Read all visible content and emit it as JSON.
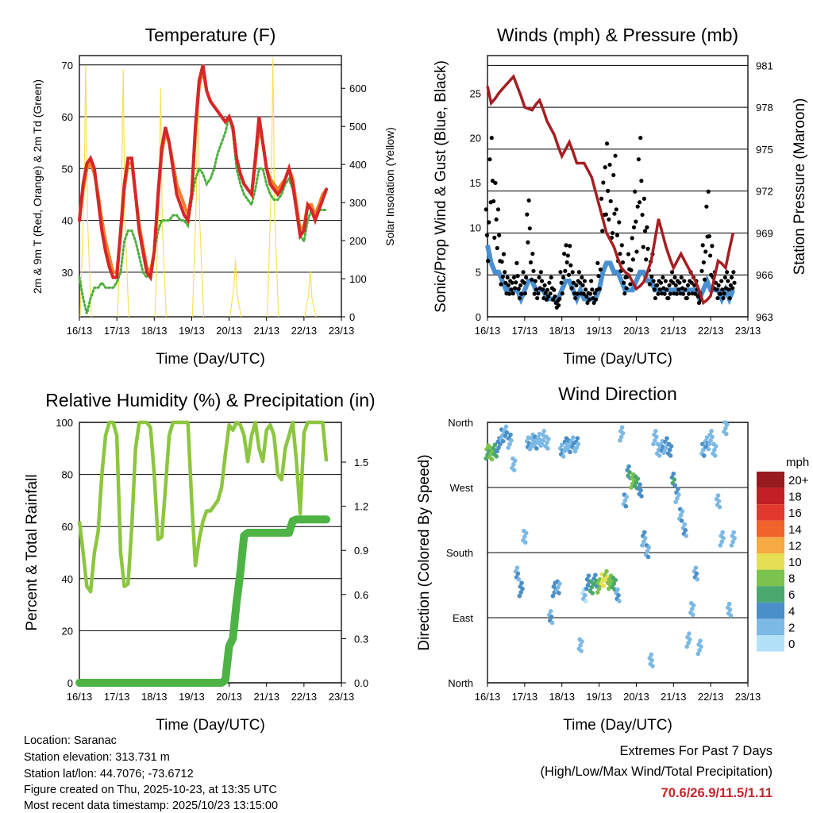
{
  "x_ticks": [
    "16/13",
    "17/13",
    "18/13",
    "19/13",
    "20/13",
    "21/13",
    "22/13",
    "23/13"
  ],
  "x_label": "Time (Day/UTC)",
  "info": {
    "location": "Location: Saranac",
    "elevation": "Station elevation: 313.731 m",
    "latlon": "Station lat/lon: 44.7076; -73.6712",
    "created": "Figure created on Thu, 2025-10-23, at 13:35 UTC",
    "recent": "Most recent data timestamp: 2025/10/23 13:15:00"
  },
  "extremes": {
    "title": "Extremes For Past 7 Days",
    "subtitle": "(High/Low/Max Wind/Total Precipitation)",
    "values": "70.6/26.9/11.5/1.11"
  },
  "chart_data": [
    {
      "type": "line",
      "title": "Temperature (F)",
      "ylabel": "2m & 9m T (Red, Orange) & 2m Td (Green)",
      "y2label": "Solar Insolation (Yellow)",
      "ylim": [
        21.4,
        71.8
      ],
      "y2lim": [
        0,
        686
      ],
      "yticks": [
        30,
        40,
        50,
        60,
        70
      ],
      "y2ticks": [
        0,
        100,
        200,
        300,
        400,
        500,
        600
      ],
      "x_step_days": 0.1,
      "series": [
        {
          "name": "2m T",
          "color": "#d62728",
          "values": [
            40,
            47,
            51,
            52,
            50,
            44,
            38,
            34,
            31,
            29,
            29,
            38,
            47,
            52,
            52,
            45,
            38,
            34,
            30,
            29,
            34,
            45,
            54,
            58,
            55,
            50,
            45,
            43,
            41,
            40,
            45,
            58,
            67,
            70,
            65,
            63,
            62,
            61,
            60,
            59,
            60,
            58,
            52,
            49,
            47,
            46,
            45,
            52,
            60,
            55,
            50,
            47,
            46,
            45,
            46,
            48,
            50,
            47,
            42,
            37,
            38,
            43,
            42,
            40,
            42,
            44,
            46
          ]
        },
        {
          "name": "9m T",
          "color": "#f07f2a",
          "values": [
            40,
            46,
            50,
            51,
            49,
            45,
            40,
            36,
            33,
            30,
            30,
            37,
            46,
            51,
            51,
            45,
            39,
            35,
            31,
            30,
            34,
            44,
            53,
            57,
            55,
            51,
            47,
            45,
            43,
            41,
            45,
            57,
            66,
            69,
            65,
            63,
            62,
            61,
            60,
            59,
            60,
            58,
            52,
            49,
            47,
            46,
            45,
            51,
            58,
            55,
            50,
            48,
            47,
            46,
            47,
            48,
            50,
            48,
            43,
            38,
            39,
            43,
            43,
            41,
            43,
            45,
            46
          ]
        },
        {
          "name": "2m Td",
          "color": "#4caf3f",
          "values": [
            29,
            25,
            22,
            25,
            27,
            27,
            28,
            27,
            27,
            27,
            28,
            30,
            36,
            38,
            38,
            36,
            33,
            30,
            29,
            30,
            34,
            38,
            40,
            40,
            40,
            41,
            41,
            40,
            40,
            39,
            44,
            48,
            50,
            49,
            47,
            48,
            50,
            53,
            55,
            57,
            60,
            57,
            50,
            47,
            45,
            44,
            43,
            46,
            50,
            50,
            47,
            45,
            44,
            44,
            45,
            47,
            48,
            46,
            42,
            37,
            36,
            40,
            42,
            41,
            42,
            42,
            42
          ]
        }
      ],
      "solar": {
        "name": "Solar Insolation",
        "color": "#f7e15a",
        "peak_day_offset": 0.17,
        "daily_peaks": [
          660,
          650,
          600,
          630,
          150,
          680,
          120
        ]
      }
    },
    {
      "type": "scatter+line",
      "title": "Winds (mph) & Pressure (mb)",
      "ylabel": "Sonic/Prop Wind & Gust (Blue, Black)",
      "y2label": "Station Pressure (Maroon)",
      "ylim": [
        0,
        29.2
      ],
      "y2lim": [
        963,
        981.7
      ],
      "yticks": [
        0,
        5,
        10,
        15,
        20,
        25
      ],
      "y2ticks": [
        963,
        966,
        969,
        972,
        975,
        978,
        981
      ],
      "x_step_days": 0.1,
      "pressure": {
        "color": "#a51e22",
        "values": [
          979.5,
          978.3,
          978.6,
          979,
          979.3,
          979.6,
          979.9,
          980.2,
          979.5,
          978.8,
          978,
          977.9,
          977.8,
          978.2,
          978.5,
          977.8,
          977,
          976.5,
          976,
          975.2,
          974.5,
          975,
          975.5,
          974.8,
          974,
          974,
          974,
          973.5,
          973,
          972,
          971,
          970,
          969,
          968.5,
          968,
          967.2,
          966.5,
          966.2,
          966,
          965.5,
          965,
          965.2,
          965.5,
          966.2,
          967,
          968.5,
          970,
          969,
          968,
          967.2,
          966.5,
          967,
          967.5,
          967,
          966.5,
          966,
          965.5,
          964.8,
          964,
          964.2,
          964.5,
          965.8,
          967,
          966.8,
          966.5,
          967.8,
          969
        ]
      },
      "gust": {
        "color": "#000000",
        "values": [
          12,
          20,
          17,
          12,
          7,
          5,
          4,
          5,
          6,
          4,
          5,
          13,
          8,
          4,
          5,
          4,
          3,
          5,
          3,
          2,
          5,
          8,
          9,
          5,
          4,
          5,
          4,
          3,
          4,
          3,
          6,
          15,
          22,
          17,
          18,
          12,
          8,
          5,
          7,
          10,
          14,
          20,
          15,
          10,
          7,
          4,
          4,
          5,
          4,
          4,
          5,
          4,
          5,
          4,
          4,
          5,
          4,
          3,
          8,
          14,
          9,
          5,
          4,
          4,
          5,
          4,
          5
        ]
      },
      "wind": {
        "color": "#4a90d0",
        "values": [
          8,
          6,
          5,
          5,
          4,
          3,
          3,
          3,
          3,
          2,
          3,
          4,
          4,
          3,
          3,
          3,
          2,
          2,
          2,
          2,
          3,
          4,
          4,
          3,
          2,
          3,
          2,
          2,
          2,
          2,
          3,
          5,
          6,
          6,
          5,
          5,
          4,
          3,
          3,
          3,
          4,
          5,
          5,
          4,
          4,
          3,
          3,
          3,
          3,
          3,
          3,
          3,
          3,
          3,
          3,
          3,
          3,
          2,
          3,
          4,
          3,
          3,
          3,
          2,
          3,
          2,
          3
        ]
      }
    },
    {
      "type": "line",
      "title": "Relative Humidity (%) & Precipitation (in)",
      "ylabel": "Percent & Total Rainfall",
      "ylim": [
        0,
        100
      ],
      "y2lim": [
        0,
        1.77
      ],
      "yticks": [
        0,
        20,
        40,
        60,
        80,
        100
      ],
      "y2ticks": [
        "0.0",
        "0.3",
        "0.6",
        "0.9",
        "1.2",
        "1.5"
      ],
      "x_step_days": 0.1,
      "rh": {
        "color": "#8cc63f",
        "values": [
          62,
          50,
          37,
          35,
          50,
          58,
          80,
          95,
          100,
          100,
          95,
          50,
          37,
          38,
          60,
          90,
          100,
          100,
          100,
          98,
          80,
          55,
          56,
          75,
          95,
          100,
          100,
          100,
          100,
          100,
          70,
          45,
          55,
          62,
          66,
          66,
          68,
          70,
          75,
          88,
          99,
          97,
          100,
          99,
          95,
          85,
          95,
          100,
          90,
          85,
          97,
          99,
          95,
          80,
          78,
          90,
          95,
          100,
          85,
          65,
          96,
          100,
          100,
          100,
          100,
          100,
          85
        ]
      },
      "precip": {
        "color": "#4cb344",
        "values": [
          0,
          0,
          0,
          0,
          0,
          0,
          0,
          0,
          0,
          0,
          0,
          0,
          0,
          0,
          0,
          0,
          0,
          0,
          0,
          0,
          0,
          0,
          0,
          0,
          0,
          0,
          0,
          0,
          0,
          0,
          0,
          0,
          0,
          0,
          0,
          0,
          0,
          0,
          0,
          0.02,
          0.25,
          0.3,
          0.55,
          0.75,
          1.0,
          1.02,
          1.02,
          1.02,
          1.02,
          1.02,
          1.02,
          1.02,
          1.02,
          1.02,
          1.02,
          1.02,
          1.02,
          1.1,
          1.11,
          1.11,
          1.11,
          1.11,
          1.11,
          1.11,
          1.11,
          1.11,
          1.11
        ]
      }
    },
    {
      "type": "scatter",
      "title": "Wind Direction",
      "ylabel": "Direction (Colored By Speed)",
      "yticks": [
        "North",
        "East",
        "South",
        "West",
        "North"
      ],
      "ylim": [
        0,
        360
      ],
      "x_step_days": 0.1,
      "direction": [
        320,
        315,
        320,
        330,
        340,
        345,
        335,
        300,
        150,
        130,
        200,
        330,
        335,
        330,
        335,
        340,
        330,
        90,
        130,
        130,
        320,
        330,
        325,
        330,
        330,
        50,
        120,
        140,
        130,
        140,
        135,
        140,
        145,
        140,
        135,
        120,
        345,
        250,
        290,
        280,
        275,
        265,
        200,
        180,
        30,
        340,
        320,
        325,
        330,
        320,
        280,
        260,
        230,
        210,
        60,
        100,
        150,
        50,
        320,
        330,
        340,
        320,
        250,
        200,
        350,
        100,
        200
      ],
      "speed": [
        7,
        8,
        6,
        4,
        3,
        3,
        3,
        2,
        3,
        4,
        2,
        3,
        2,
        3,
        2,
        2,
        2,
        3,
        4,
        3,
        3,
        3,
        3,
        3,
        3,
        2,
        1,
        4,
        6,
        5,
        8,
        10,
        9,
        8,
        6,
        3,
        2,
        3,
        5,
        8,
        6,
        4,
        3,
        3,
        2,
        2,
        2,
        3,
        3,
        4,
        5,
        3,
        3,
        3,
        2,
        2,
        3,
        2,
        3,
        3,
        2,
        2,
        2,
        2,
        2,
        2,
        2
      ],
      "legend": {
        "title": "mph",
        "labels": [
          "20+",
          "18",
          "16",
          "14",
          "12",
          "10",
          "8",
          "6",
          "4",
          "2",
          "0"
        ],
        "colors": [
          "#981b1e",
          "#c21f26",
          "#e13a2c",
          "#f0642b",
          "#f7a944",
          "#e6df55",
          "#7cc24e",
          "#4aa86e",
          "#4a8fc7",
          "#7db9e5",
          "#b3e1f7"
        ]
      }
    }
  ]
}
